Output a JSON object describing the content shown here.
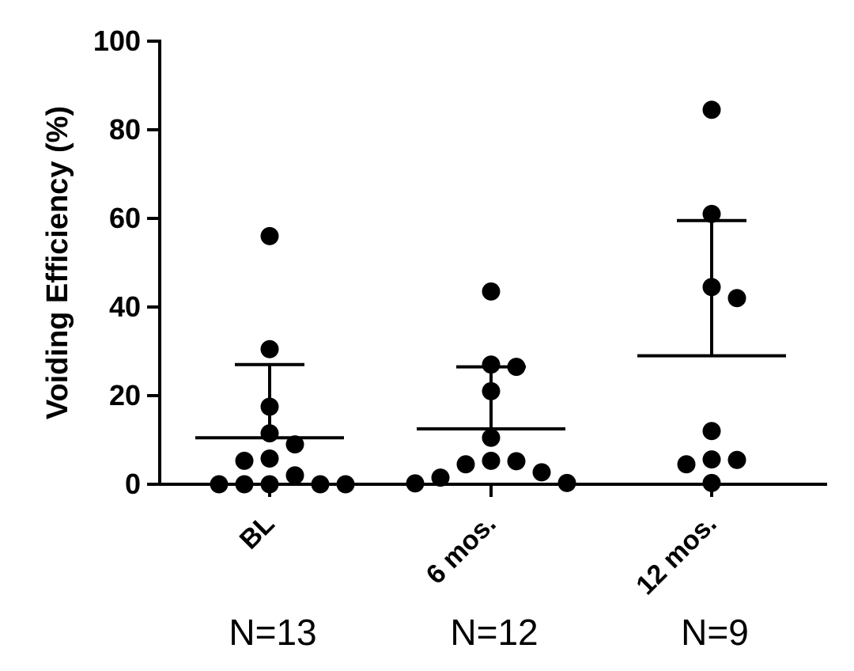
{
  "chart_data": {
    "type": "scatter",
    "ylabel": "Voiding Efficiency (%)",
    "ylim": [
      0,
      100
    ],
    "yticks": [
      0,
      20,
      40,
      60,
      80,
      100
    ],
    "grid": false,
    "groups": [
      {
        "label": "BL",
        "n_label": "N=13",
        "values": [
          56,
          30.5,
          17.5,
          11.5,
          9,
          5.8,
          5.3,
          2,
          0,
          0,
          0,
          0,
          0
        ],
        "mean": 10.5,
        "sd_upper": 27
      },
      {
        "label": "6 mos.",
        "n_label": "N=12",
        "values": [
          43.5,
          27,
          26.5,
          21,
          10.5,
          5.3,
          5.2,
          4.5,
          2.7,
          1.5,
          0.3,
          0.2
        ],
        "mean": 12.5,
        "sd_upper": 26.5
      },
      {
        "label": "12 mos.",
        "n_label": "N=9",
        "values": [
          84.5,
          61,
          44.5,
          42,
          12,
          5.6,
          5.5,
          4.5,
          0.3
        ],
        "mean": 29,
        "sd_upper": 59.5
      }
    ]
  }
}
